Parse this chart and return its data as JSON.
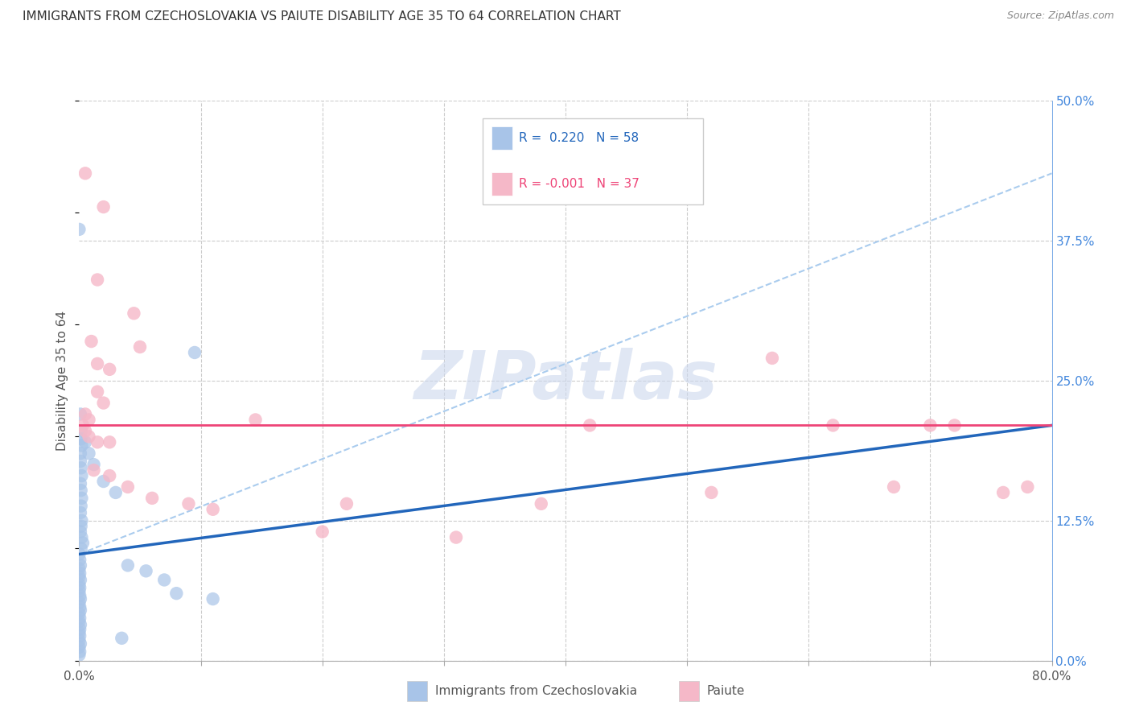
{
  "title": "IMMIGRANTS FROM CZECHOSLOVAKIA VS PAIUTE DISABILITY AGE 35 TO 64 CORRELATION CHART",
  "source": "Source: ZipAtlas.com",
  "ylabel": "Disability Age 35 to 64",
  "legend_labels": [
    "Immigrants from Czechoslovakia",
    "Paiute"
  ],
  "r_blue": 0.22,
  "n_blue": 58,
  "r_pink": -0.001,
  "n_pink": 37,
  "xlim": [
    0.0,
    80.0
  ],
  "ylim": [
    0.0,
    50.0
  ],
  "xtick_positions": [
    0.0,
    10.0,
    20.0,
    30.0,
    40.0,
    50.0,
    60.0,
    70.0,
    80.0
  ],
  "xtick_labels_show": [
    "0.0%",
    "",
    "",
    "",
    "",
    "",
    "",
    "",
    "80.0%"
  ],
  "yticks_right": [
    0.0,
    12.5,
    25.0,
    37.5,
    50.0
  ],
  "blue_color": "#a8c4e8",
  "pink_color": "#f5b8c8",
  "blue_scatter": [
    [
      0.0,
      38.5
    ],
    [
      0.1,
      22.0
    ],
    [
      0.15,
      20.5
    ],
    [
      0.15,
      19.8
    ],
    [
      0.2,
      19.2
    ],
    [
      0.1,
      18.5
    ],
    [
      0.1,
      17.8
    ],
    [
      0.15,
      17.2
    ],
    [
      0.2,
      16.5
    ],
    [
      0.1,
      15.8
    ],
    [
      0.15,
      15.2
    ],
    [
      0.2,
      14.5
    ],
    [
      0.15,
      13.8
    ],
    [
      0.1,
      13.2
    ],
    [
      0.2,
      12.5
    ],
    [
      0.15,
      12.0
    ],
    [
      0.1,
      11.5
    ],
    [
      0.2,
      11.0
    ],
    [
      0.3,
      10.5
    ],
    [
      0.15,
      10.0
    ],
    [
      0.0,
      9.5
    ],
    [
      0.05,
      9.0
    ],
    [
      0.1,
      8.5
    ],
    [
      0.0,
      8.2
    ],
    [
      0.05,
      7.8
    ],
    [
      0.0,
      7.5
    ],
    [
      0.1,
      7.2
    ],
    [
      0.0,
      6.8
    ],
    [
      0.05,
      6.5
    ],
    [
      0.0,
      6.2
    ],
    [
      0.05,
      5.8
    ],
    [
      0.1,
      5.5
    ],
    [
      0.0,
      5.2
    ],
    [
      0.05,
      4.8
    ],
    [
      0.1,
      4.5
    ],
    [
      0.0,
      4.2
    ],
    [
      0.05,
      3.8
    ],
    [
      0.0,
      3.5
    ],
    [
      0.1,
      3.2
    ],
    [
      0.05,
      2.8
    ],
    [
      0.0,
      2.5
    ],
    [
      0.05,
      2.2
    ],
    [
      0.0,
      1.8
    ],
    [
      0.1,
      1.5
    ],
    [
      0.0,
      1.2
    ],
    [
      0.05,
      0.8
    ],
    [
      0.0,
      0.5
    ],
    [
      0.5,
      19.5
    ],
    [
      0.8,
      18.5
    ],
    [
      1.2,
      17.5
    ],
    [
      2.0,
      16.0
    ],
    [
      3.0,
      15.0
    ],
    [
      4.0,
      8.5
    ],
    [
      5.5,
      8.0
    ],
    [
      7.0,
      7.2
    ],
    [
      8.0,
      6.0
    ],
    [
      9.5,
      27.5
    ],
    [
      11.0,
      5.5
    ],
    [
      3.5,
      2.0
    ]
  ],
  "pink_scatter": [
    [
      0.5,
      43.5
    ],
    [
      2.0,
      40.5
    ],
    [
      1.5,
      34.0
    ],
    [
      4.5,
      31.0
    ],
    [
      1.0,
      28.5
    ],
    [
      5.0,
      28.0
    ],
    [
      1.5,
      26.5
    ],
    [
      2.5,
      26.0
    ],
    [
      1.5,
      24.0
    ],
    [
      2.0,
      23.0
    ],
    [
      0.5,
      22.0
    ],
    [
      0.8,
      21.5
    ],
    [
      0.3,
      21.0
    ],
    [
      0.5,
      20.5
    ],
    [
      0.8,
      20.0
    ],
    [
      1.5,
      19.5
    ],
    [
      2.5,
      19.5
    ],
    [
      1.2,
      17.0
    ],
    [
      2.5,
      16.5
    ],
    [
      4.0,
      15.5
    ],
    [
      6.0,
      14.5
    ],
    [
      9.0,
      14.0
    ],
    [
      11.0,
      13.5
    ],
    [
      14.5,
      21.5
    ],
    [
      20.0,
      11.5
    ],
    [
      22.0,
      14.0
    ],
    [
      31.0,
      11.0
    ],
    [
      38.0,
      14.0
    ],
    [
      42.0,
      21.0
    ],
    [
      52.0,
      15.0
    ],
    [
      57.0,
      27.0
    ],
    [
      62.0,
      21.0
    ],
    [
      67.0,
      15.5
    ],
    [
      70.0,
      21.0
    ],
    [
      72.0,
      21.0
    ],
    [
      76.0,
      15.0
    ],
    [
      78.0,
      15.5
    ]
  ],
  "blue_solid_line": [
    [
      0.0,
      9.5
    ],
    [
      80.0,
      21.0
    ]
  ],
  "blue_dashed_line": [
    [
      0.0,
      9.5
    ],
    [
      80.0,
      43.5
    ]
  ],
  "pink_line_y": 21.0,
  "background_color": "#ffffff",
  "grid_color": "#cccccc",
  "title_fontsize": 11,
  "axis_label_fontsize": 11,
  "tick_fontsize": 11,
  "watermark_text": "ZIPatlas",
  "watermark_color": "#ccd8ee"
}
